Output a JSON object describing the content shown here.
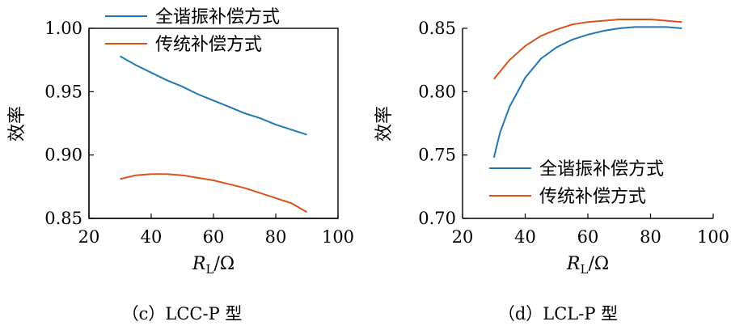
{
  "chart_data": [
    {
      "type": "line",
      "caption": "（c）LCC-P 型",
      "ylabel": "效率",
      "xlabel_main": "R",
      "xlabel_sub": "L",
      "xlabel_unit": "/Ω",
      "xlim": [
        20,
        100
      ],
      "ylim": [
        0.85,
        1.0
      ],
      "xticks": [
        20,
        40,
        60,
        80,
        100
      ],
      "xtick_labels": [
        "20",
        "40",
        "60",
        "80",
        "100"
      ],
      "yticks": [
        0.85,
        0.9,
        0.95,
        1.0
      ],
      "ytick_labels": [
        "0.85",
        "0.90",
        "0.95",
        "1.00"
      ],
      "legend_position": "top-right",
      "series": [
        {
          "name": "全谐振补偿方式",
          "color": "#1f77b4",
          "x": [
            30,
            35,
            40,
            45,
            50,
            55,
            60,
            65,
            70,
            75,
            80,
            85,
            90
          ],
          "y": [
            0.978,
            0.971,
            0.965,
            0.959,
            0.954,
            0.948,
            0.943,
            0.938,
            0.933,
            0.929,
            0.924,
            0.92,
            0.916
          ]
        },
        {
          "name": "传统补偿方式",
          "color": "#d95319",
          "x": [
            30,
            35,
            40,
            45,
            50,
            55,
            60,
            65,
            70,
            75,
            80,
            85,
            90
          ],
          "y": [
            0.881,
            0.884,
            0.885,
            0.885,
            0.884,
            0.882,
            0.88,
            0.877,
            0.874,
            0.87,
            0.866,
            0.862,
            0.855
          ]
        }
      ]
    },
    {
      "type": "line",
      "caption": "（d）LCL-P 型",
      "ylabel": "效率",
      "xlabel_main": "R",
      "xlabel_sub": "L",
      "xlabel_unit": "/Ω",
      "xlim": [
        20,
        100
      ],
      "ylim": [
        0.7,
        0.85
      ],
      "xticks": [
        20,
        40,
        60,
        80,
        100
      ],
      "xtick_labels": [
        "20",
        "40",
        "60",
        "80",
        "100"
      ],
      "yticks": [
        0.7,
        0.75,
        0.8,
        0.85
      ],
      "ytick_labels": [
        "0.70",
        "0.75",
        "0.80",
        "0.85"
      ],
      "legend_position": "bottom-right",
      "series": [
        {
          "name": "全谐振补偿方式",
          "color": "#1f77b4",
          "x": [
            30,
            32,
            35,
            40,
            45,
            50,
            55,
            60,
            65,
            70,
            75,
            80,
            85,
            90
          ],
          "y": [
            0.748,
            0.768,
            0.788,
            0.811,
            0.826,
            0.835,
            0.841,
            0.845,
            0.848,
            0.85,
            0.851,
            0.851,
            0.851,
            0.85
          ]
        },
        {
          "name": "传统补偿方式",
          "color": "#d95319",
          "x": [
            30,
            35,
            40,
            45,
            50,
            55,
            60,
            65,
            70,
            75,
            80,
            85,
            90
          ],
          "y": [
            0.81,
            0.825,
            0.836,
            0.844,
            0.849,
            0.853,
            0.855,
            0.856,
            0.857,
            0.857,
            0.857,
            0.856,
            0.855
          ]
        }
      ]
    }
  ]
}
